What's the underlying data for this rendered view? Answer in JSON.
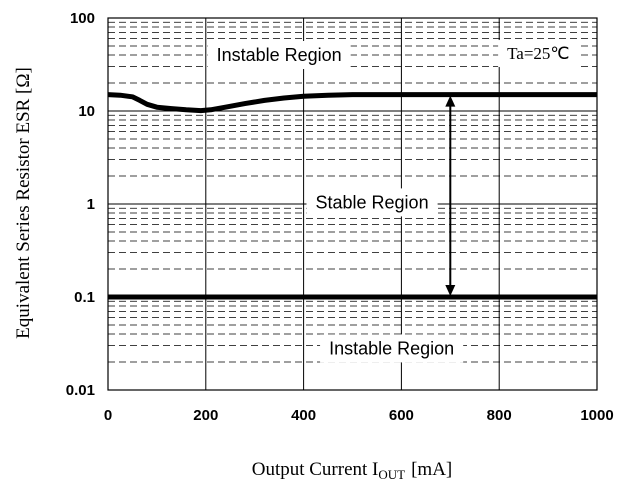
{
  "chart_data": {
    "type": "line",
    "xlabel": "Output Current I",
    "xlabel_sub": "OUT",
    "xlabel_unit": "[mA]",
    "ylabel": "Equivalent Series Resistor ESR [Ω]",
    "xlim": [
      0,
      1000
    ],
    "ylim": [
      0.01,
      100
    ],
    "yscale": "log",
    "grid": true,
    "x_ticks": [
      "0",
      "200",
      "400",
      "600",
      "800",
      "1000"
    ],
    "y_ticks": [
      "0.01",
      "0.1",
      "1",
      "10",
      "100"
    ],
    "x_tick_values": [
      0,
      200,
      400,
      600,
      800,
      1000
    ],
    "y_tick_values": [
      0.01,
      0.1,
      1,
      10,
      100
    ],
    "series": [
      {
        "x": [
          0,
          25,
          50,
          65,
          80,
          100,
          130,
          160,
          190,
          210,
          240,
          280,
          320,
          360,
          400,
          450,
          500,
          550,
          600,
          700,
          800,
          900,
          1000
        ],
        "y": [
          15,
          14.8,
          14.2,
          13,
          11.8,
          11,
          10.6,
          10.3,
          10.1,
          10.3,
          11,
          12,
          13,
          13.8,
          14.4,
          14.8,
          15,
          15,
          15,
          15,
          15,
          15,
          15
        ]
      },
      {
        "x": [
          0,
          1000
        ],
        "y": [
          0.1,
          0.1
        ]
      }
    ],
    "annotations": [
      {
        "text": "Instable Region",
        "x": 350,
        "y": 40
      },
      {
        "text": "Stable Region",
        "x": 540,
        "y": 1.04
      },
      {
        "text": "Instable Region",
        "x": 580,
        "y": 0.028
      },
      {
        "text": "Ta=25℃",
        "x": 880,
        "y": 42
      }
    ],
    "arrow": {
      "x": 700,
      "y_from": 15,
      "y_to": 0.1
    }
  }
}
